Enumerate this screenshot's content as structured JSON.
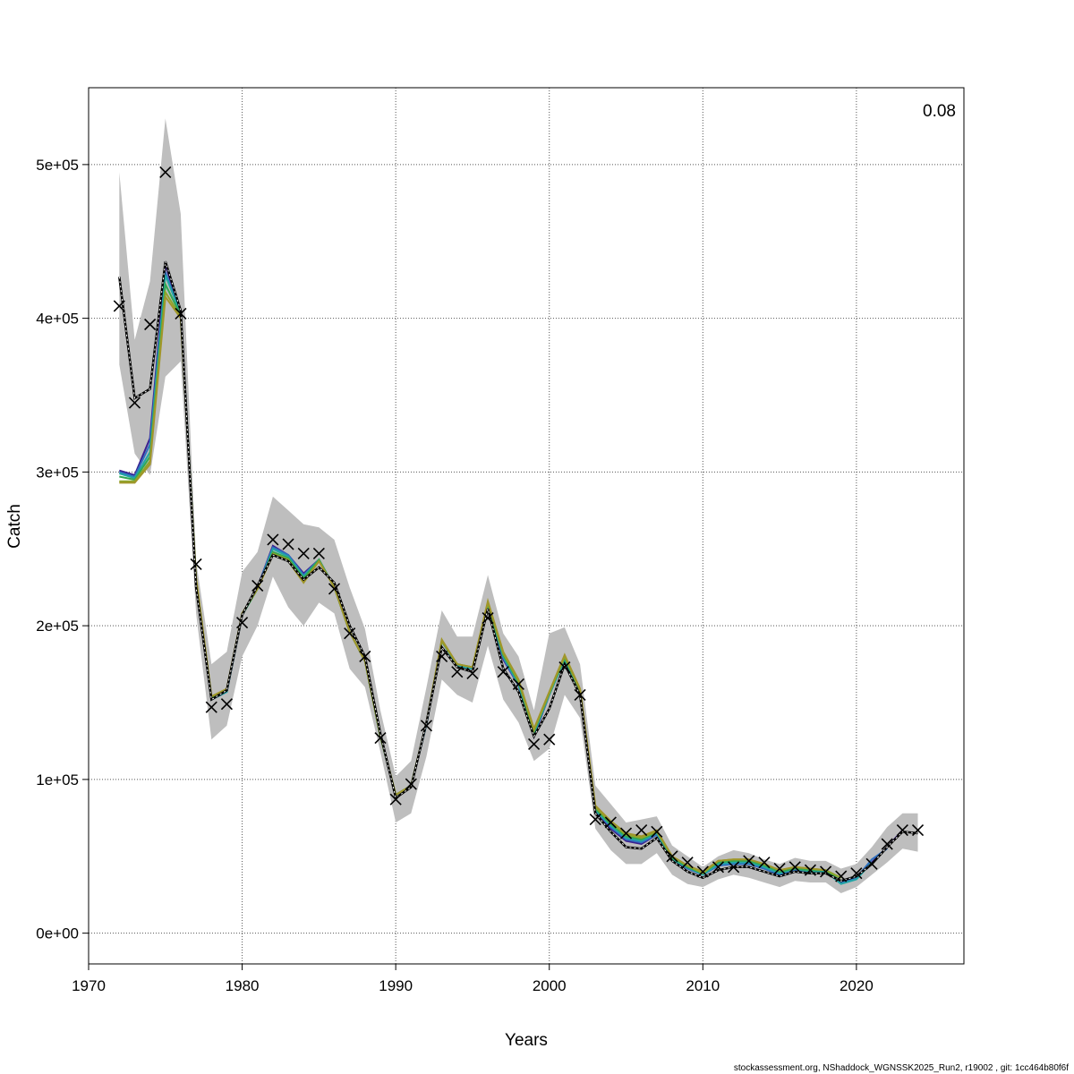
{
  "chart_data": {
    "type": "line",
    "title": "",
    "xlabel": "Years",
    "ylabel": "Catch",
    "corner_label": "0.08",
    "footer": "stockassessment.org, NShaddock_WGNSSK2025_Run2, r19002 , git: 1cc464b80f6f",
    "xlim": [
      1970,
      2027
    ],
    "ylim": [
      -20000,
      550000
    ],
    "x_ticks": [
      1970,
      1980,
      1990,
      2000,
      2010,
      2020
    ],
    "y_ticks": [
      0,
      100000,
      200000,
      300000,
      400000,
      500000
    ],
    "y_tick_labels": [
      "0e+00",
      "1e+05",
      "2e+05",
      "3e+05",
      "4e+05",
      "5e+05"
    ],
    "grid": true,
    "colors": {
      "band": "#bebebe",
      "retro": [
        "#3b1f8f",
        "#2f6fbf",
        "#22a6a6",
        "#32a852",
        "#8ea52a",
        "#a0962a"
      ],
      "estimate": "#000000",
      "observed": "#000000"
    },
    "observed": {
      "x": [
        1972,
        1973,
        1974,
        1975,
        1976,
        1977,
        1978,
        1979,
        1980,
        1981,
        1982,
        1983,
        1984,
        1985,
        1986,
        1987,
        1988,
        1989,
        1990,
        1991,
        1992,
        1993,
        1994,
        1995,
        1996,
        1997,
        1998,
        1999,
        2000,
        2001,
        2002,
        2003,
        2004,
        2005,
        2006,
        2007,
        2008,
        2009,
        2010,
        2011,
        2012,
        2013,
        2014,
        2015,
        2016,
        2017,
        2018,
        2019,
        2020,
        2021,
        2022,
        2023,
        2024
      ],
      "y": [
        408000,
        345000,
        396000,
        495000,
        403000,
        240000,
        147000,
        149000,
        202000,
        226000,
        256000,
        253000,
        247000,
        247000,
        224000,
        195000,
        180000,
        127000,
        87000,
        97000,
        135000,
        180000,
        170000,
        169000,
        205000,
        170000,
        162000,
        123000,
        126000,
        173000,
        155000,
        74000,
        72000,
        65000,
        67000,
        66000,
        50000,
        46000,
        40000,
        43000,
        43000,
        47000,
        46000,
        42000,
        43000,
        41000,
        40000,
        37000,
        39000,
        45000,
        58000,
        67000,
        67000
      ]
    },
    "estimate": {
      "x": [
        1972,
        1973,
        1974,
        1975,
        1976,
        1977,
        1978,
        1979,
        1980,
        1981,
        1982,
        1983,
        1984,
        1985,
        1986,
        1987,
        1988,
        1989,
        1990,
        1991,
        1992,
        1993,
        1994,
        1995,
        1996,
        1997,
        1998,
        1999,
        2000,
        2001,
        2002,
        2003,
        2004,
        2005,
        2006,
        2007,
        2008,
        2009,
        2010,
        2011,
        2012,
        2013,
        2014,
        2015,
        2016,
        2017,
        2018,
        2019,
        2020,
        2021,
        2022,
        2023,
        2024
      ],
      "y": [
        427000,
        348000,
        354000,
        437000,
        405000,
        225000,
        152000,
        158000,
        207000,
        226000,
        246000,
        242000,
        230000,
        238000,
        228000,
        200000,
        180000,
        130000,
        88000,
        95000,
        137000,
        186000,
        173000,
        170000,
        211000,
        172000,
        157000,
        128000,
        146000,
        175000,
        155000,
        78000,
        66000,
        56000,
        55000,
        62000,
        47000,
        40000,
        36000,
        41000,
        43000,
        43000,
        40000,
        37000,
        40000,
        39000,
        39000,
        34000,
        37000,
        45000,
        56000,
        66000,
        65000
      ]
    },
    "band": {
      "x": [
        1972,
        1973,
        1974,
        1975,
        1976,
        1977,
        1978,
        1979,
        1980,
        1981,
        1982,
        1983,
        1984,
        1985,
        1986,
        1987,
        1988,
        1989,
        1990,
        1991,
        1992,
        1993,
        1994,
        1995,
        1996,
        1997,
        1998,
        1999,
        2000,
        2001,
        2002,
        2003,
        2004,
        2005,
        2006,
        2007,
        2008,
        2009,
        2010,
        2011,
        2012,
        2013,
        2014,
        2015,
        2016,
        2017,
        2018,
        2019,
        2020,
        2021,
        2022,
        2023,
        2024
      ],
      "lower": [
        370000,
        312000,
        298000,
        362000,
        372000,
        208000,
        126000,
        135000,
        180000,
        200000,
        232000,
        212000,
        200000,
        215000,
        208000,
        172000,
        160000,
        118000,
        72000,
        78000,
        115000,
        165000,
        155000,
        150000,
        187000,
        152000,
        137000,
        112000,
        120000,
        155000,
        140000,
        68000,
        54000,
        45000,
        45000,
        52000,
        38000,
        32000,
        30000,
        35000,
        38000,
        36000,
        33000,
        30000,
        34000,
        33000,
        33000,
        26000,
        30000,
        38000,
        46000,
        55000,
        53000
      ],
      "upper": [
        495000,
        386000,
        424000,
        530000,
        468000,
        242000,
        175000,
        183000,
        235000,
        248000,
        284000,
        275000,
        266000,
        264000,
        256000,
        225000,
        198000,
        145000,
        102000,
        112000,
        160000,
        210000,
        193000,
        193000,
        233000,
        195000,
        180000,
        145000,
        195000,
        199000,
        175000,
        96000,
        84000,
        72000,
        74000,
        76000,
        57000,
        50000,
        43000,
        50000,
        54000,
        52000,
        48000,
        45000,
        49000,
        47000,
        47000,
        42000,
        45000,
        56000,
        69000,
        78000,
        78000
      ]
    },
    "series": [
      {
        "x": [
          1972,
          1973,
          1974,
          1975,
          1976,
          1977,
          1978,
          1979,
          1980,
          1981,
          1982,
          1983,
          1984,
          1985,
          1986,
          1987,
          1988,
          1989,
          1990,
          1991,
          1992,
          1993,
          1994,
          1995,
          1996,
          1997,
          1998,
          1999,
          2000,
          2001,
          2002,
          2003,
          2004,
          2005,
          2006,
          2007,
          2008,
          2009,
          2010,
          2011,
          2012,
          2013,
          2014,
          2015,
          2016,
          2017,
          2018,
          2019,
          2020,
          2021,
          2022,
          2023
        ],
        "y": [
          301000,
          298000,
          322000,
          435000,
          403000,
          228000,
          152000,
          157000,
          207000,
          225000,
          252000,
          246000,
          234000,
          243000,
          225000,
          196000,
          177000,
          128000,
          90000,
          96000,
          136000,
          190000,
          174000,
          172000,
          212000,
          178000,
          161000,
          128000,
          155000,
          178000,
          157000,
          80000,
          68000,
          60000,
          58000,
          64000,
          48000,
          42000,
          38000,
          44000,
          45000,
          45000,
          42000,
          38000,
          41000,
          40000,
          40000,
          33000,
          37000,
          46000,
          56000,
          67000
        ]
      },
      {
        "x": [
          1972,
          1973,
          1974,
          1975,
          1976,
          1977,
          1978,
          1979,
          1980,
          1981,
          1982,
          1983,
          1984,
          1985,
          1986,
          1987,
          1988,
          1989,
          1990,
          1991,
          1992,
          1993,
          1994,
          1995,
          1996,
          1997,
          1998,
          1999,
          2000,
          2001,
          2002,
          2003,
          2004,
          2005,
          2006,
          2007,
          2008,
          2009,
          2010,
          2011,
          2012,
          2013,
          2014,
          2015,
          2016,
          2017,
          2018,
          2019,
          2020,
          2021,
          2022
        ],
        "y": [
          300000,
          297000,
          318000,
          430000,
          403000,
          229000,
          152000,
          157000,
          207000,
          225000,
          251000,
          246000,
          233000,
          243000,
          225000,
          196000,
          177000,
          128000,
          90000,
          96000,
          136000,
          190000,
          174000,
          172000,
          212000,
          179000,
          161000,
          129000,
          155000,
          178000,
          157000,
          80000,
          69000,
          61000,
          59000,
          64000,
          48000,
          42000,
          38000,
          44000,
          45000,
          45000,
          42000,
          38000,
          41000,
          40000,
          40000,
          33000,
          36000,
          48000,
          55000
        ]
      },
      {
        "x": [
          1972,
          1973,
          1974,
          1975,
          1976,
          1977,
          1978,
          1979,
          1980,
          1981,
          1982,
          1983,
          1984,
          1985,
          1986,
          1987,
          1988,
          1989,
          1990,
          1991,
          1992,
          1993,
          1994,
          1995,
          1996,
          1997,
          1998,
          1999,
          2000,
          2001,
          2002,
          2003,
          2004,
          2005,
          2006,
          2007,
          2008,
          2009,
          2010,
          2011,
          2012,
          2013,
          2014,
          2015,
          2016,
          2017,
          2018,
          2019,
          2020,
          2021
        ],
        "y": [
          299000,
          296000,
          313000,
          428000,
          403000,
          229000,
          152000,
          157000,
          207000,
          224000,
          250000,
          245000,
          232000,
          243000,
          225000,
          196000,
          177000,
          128000,
          90000,
          96000,
          136000,
          190000,
          174000,
          172000,
          213000,
          180000,
          162000,
          130000,
          155000,
          178000,
          157000,
          80000,
          70000,
          62000,
          60000,
          65000,
          48000,
          43000,
          38000,
          45000,
          46000,
          46000,
          43000,
          39000,
          42000,
          40000,
          40000,
          32000,
          35000,
          46000
        ]
      },
      {
        "x": [
          1972,
          1973,
          1974,
          1975,
          1976,
          1977,
          1978,
          1979,
          1980,
          1981,
          1982,
          1983,
          1984,
          1985,
          1986,
          1987,
          1988,
          1989,
          1990,
          1991,
          1992,
          1993,
          1994,
          1995,
          1996,
          1997,
          1998,
          1999,
          2000,
          2001,
          2002,
          2003,
          2004,
          2005,
          2006,
          2007,
          2008,
          2009,
          2010,
          2011,
          2012,
          2013,
          2014,
          2015,
          2016,
          2017,
          2018,
          2019,
          2020
        ],
        "y": [
          297000,
          295000,
          310000,
          422000,
          402000,
          230000,
          153000,
          158000,
          207000,
          224000,
          248000,
          244000,
          231000,
          243000,
          225000,
          196000,
          177000,
          128000,
          90000,
          96000,
          137000,
          190000,
          175000,
          173000,
          214000,
          181000,
          163000,
          131000,
          156000,
          179000,
          158000,
          81000,
          71000,
          63000,
          61000,
          66000,
          49000,
          43000,
          39000,
          46000,
          47000,
          47000,
          44000,
          40000,
          42000,
          41000,
          41000,
          34000,
          37000
        ]
      },
      {
        "x": [
          1972,
          1973,
          1974,
          1975,
          1976,
          1977,
          1978,
          1979,
          1980,
          1981,
          1982,
          1983,
          1984,
          1985,
          1986,
          1987,
          1988,
          1989,
          1990,
          1991,
          1992,
          1993,
          1994,
          1995,
          1996,
          1997,
          1998,
          1999,
          2000,
          2001,
          2002,
          2003,
          2004,
          2005,
          2006,
          2007,
          2008,
          2009,
          2010,
          2011,
          2012,
          2013,
          2014,
          2015,
          2016,
          2017,
          2018,
          2019
        ],
        "y": [
          294000,
          294000,
          307000,
          417000,
          401000,
          230000,
          154000,
          158000,
          208000,
          224000,
          247000,
          243000,
          229000,
          242000,
          225000,
          196000,
          177000,
          128000,
          90000,
          96000,
          137000,
          190000,
          175000,
          173000,
          215000,
          182000,
          164000,
          132000,
          156000,
          180000,
          158000,
          82000,
          72000,
          64000,
          62000,
          66000,
          50000,
          44000,
          39000,
          47000,
          48000,
          48000,
          45000,
          41000,
          43000,
          42000,
          41000,
          36000
        ]
      },
      {
        "x": [
          1972,
          1973,
          1974,
          1975,
          1976,
          1977,
          1978,
          1979,
          1980,
          1981,
          1982,
          1983,
          1984,
          1985,
          1986,
          1987,
          1988,
          1989,
          1990,
          1991,
          1992,
          1993,
          1994,
          1995,
          1996,
          1997,
          1998,
          1999,
          2000,
          2001,
          2002,
          2003,
          2004,
          2005,
          2006,
          2007,
          2008,
          2009,
          2010,
          2011,
          2012,
          2013,
          2014,
          2015,
          2016,
          2017,
          2018
        ],
        "y": [
          293000,
          293000,
          305000,
          414000,
          400000,
          231000,
          154000,
          159000,
          208000,
          224000,
          246000,
          242000,
          228000,
          242000,
          225000,
          196000,
          177000,
          129000,
          90000,
          96000,
          137000,
          191000,
          175000,
          173000,
          216000,
          183000,
          165000,
          133000,
          157000,
          181000,
          159000,
          83000,
          73000,
          65000,
          63000,
          67000,
          50000,
          44000,
          40000,
          47000,
          48000,
          48000,
          45000,
          41000,
          43000,
          42000,
          41000
        ]
      }
    ]
  }
}
